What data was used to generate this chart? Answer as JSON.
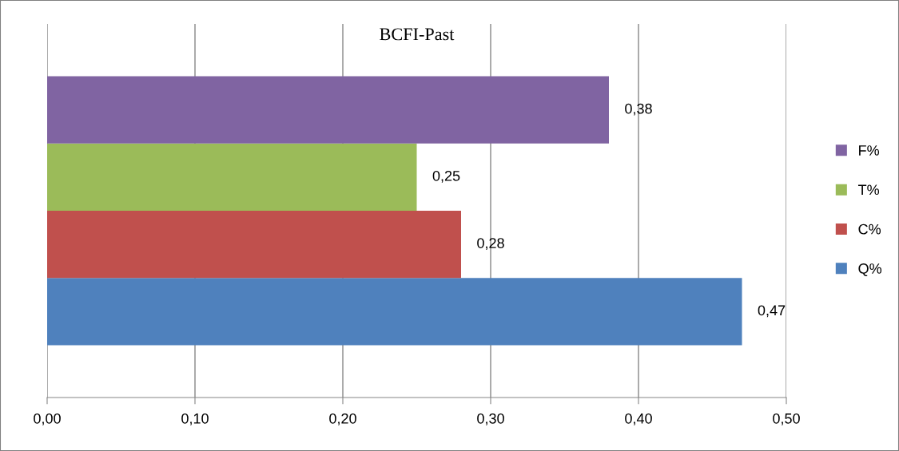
{
  "chart_data": {
    "type": "bar",
    "orientation": "horizontal",
    "title": "BCFI-Past",
    "categories": [
      null
    ],
    "series": [
      {
        "name": "Q%",
        "color": "#4f81bd",
        "values": [
          0.47
        ],
        "value_labels": [
          "0,47"
        ]
      },
      {
        "name": "C%",
        "color": "#c0504d",
        "values": [
          0.28
        ],
        "value_labels": [
          "0,28"
        ]
      },
      {
        "name": "T%",
        "color": "#9bbb59",
        "values": [
          0.25
        ],
        "value_labels": [
          "0,25"
        ]
      },
      {
        "name": "F%",
        "color": "#8064a2",
        "values": [
          0.38
        ],
        "value_labels": [
          "0,38"
        ]
      }
    ],
    "xlim": [
      0,
      0.5
    ],
    "xticks": [
      {
        "value": 0,
        "label": "0,00"
      },
      {
        "value": 0.1,
        "label": "0,10"
      },
      {
        "value": 0.2,
        "label": "0,20"
      },
      {
        "value": 0.3,
        "label": "0,30"
      },
      {
        "value": 0.4,
        "label": "0,40"
      },
      {
        "value": 0.5,
        "label": "0,50"
      }
    ],
    "grid": "x",
    "legend": "right"
  }
}
